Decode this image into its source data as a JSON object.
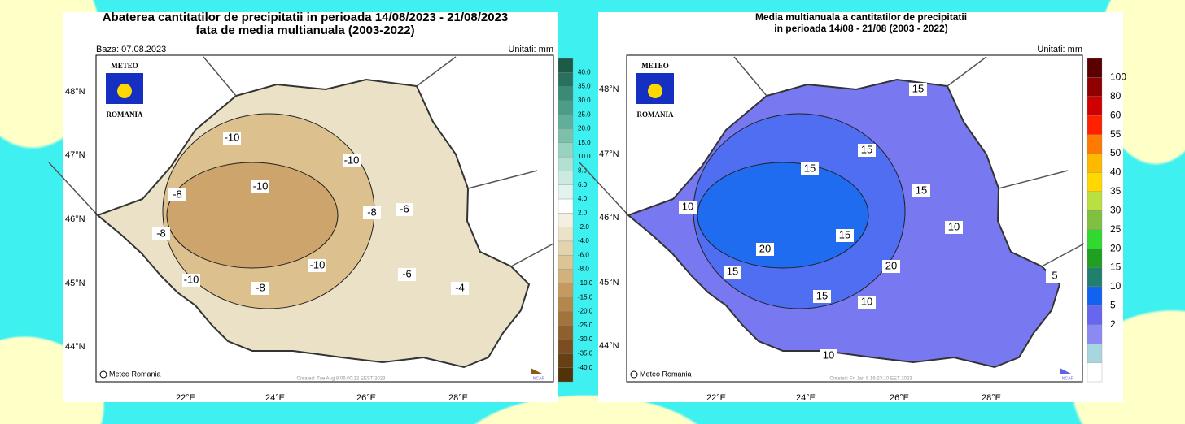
{
  "maps": [
    {
      "title_lines": [
        "Abaterea cantitatilor de precipitatii in perioada 14/08/2023 - 21/08/2023",
        "fata de media multianuala (2003-2022)"
      ],
      "base": "Baza: 07.08.2023",
      "units": "Unitati: mm",
      "logo": [
        "METEO",
        "ROMANIA"
      ],
      "lat_labels": [
        "48°N",
        "47°N",
        "46°N",
        "45°N",
        "44°N"
      ],
      "lon_labels": [
        "22°E",
        "24°E",
        "26°E",
        "28°E"
      ],
      "contour_labels": [
        "-10",
        "-10",
        "-10",
        "-10",
        "-10",
        "-8",
        "-8",
        "-8",
        "-8",
        "-6",
        "-6",
        "-4"
      ],
      "legend_labels": [
        "40.0",
        "35.0",
        "30.0",
        "25.0",
        "20.0",
        "15.0",
        "10.0",
        "8.0",
        "6.0",
        "4.0",
        "2.0",
        "-2.0",
        "-4.0",
        "-6.0",
        "-8.0",
        "-10.0",
        "-15.0",
        "-20.0",
        "-25.0",
        "-30.0",
        "-35.0",
        "-40.0"
      ],
      "credit": "Meteo Romania",
      "created": "Created: Tue Aug  8 06:00:12 EEST 2023",
      "ncar": "NCAR"
    },
    {
      "title_lines": [
        "Media multianuala a cantitatilor de precipitatii",
        "in perioada 14/08 - 21/08 (2003 - 2022)"
      ],
      "units": "Unitati: mm",
      "logo": [
        "METEO",
        "ROMANIA"
      ],
      "lat_labels": [
        "48°N",
        "47°N",
        "46°N",
        "45°N",
        "44°N"
      ],
      "lon_labels": [
        "22°E",
        "24°E",
        "26°E",
        "28°E"
      ],
      "contour_labels": [
        "15",
        "15",
        "15",
        "15",
        "15",
        "15",
        "15",
        "10",
        "10",
        "10",
        "10",
        "20",
        "20",
        "5"
      ],
      "legend_labels": [
        "100",
        "80",
        "60",
        "55",
        "50",
        "40",
        "35",
        "30",
        "25",
        "20",
        "15",
        "10",
        "5",
        "2"
      ],
      "credit": "Meteo Romania",
      "created": "Created: Fri Jan  6 16:23:10 EET 2023",
      "ncar": "NCAR"
    }
  ]
}
